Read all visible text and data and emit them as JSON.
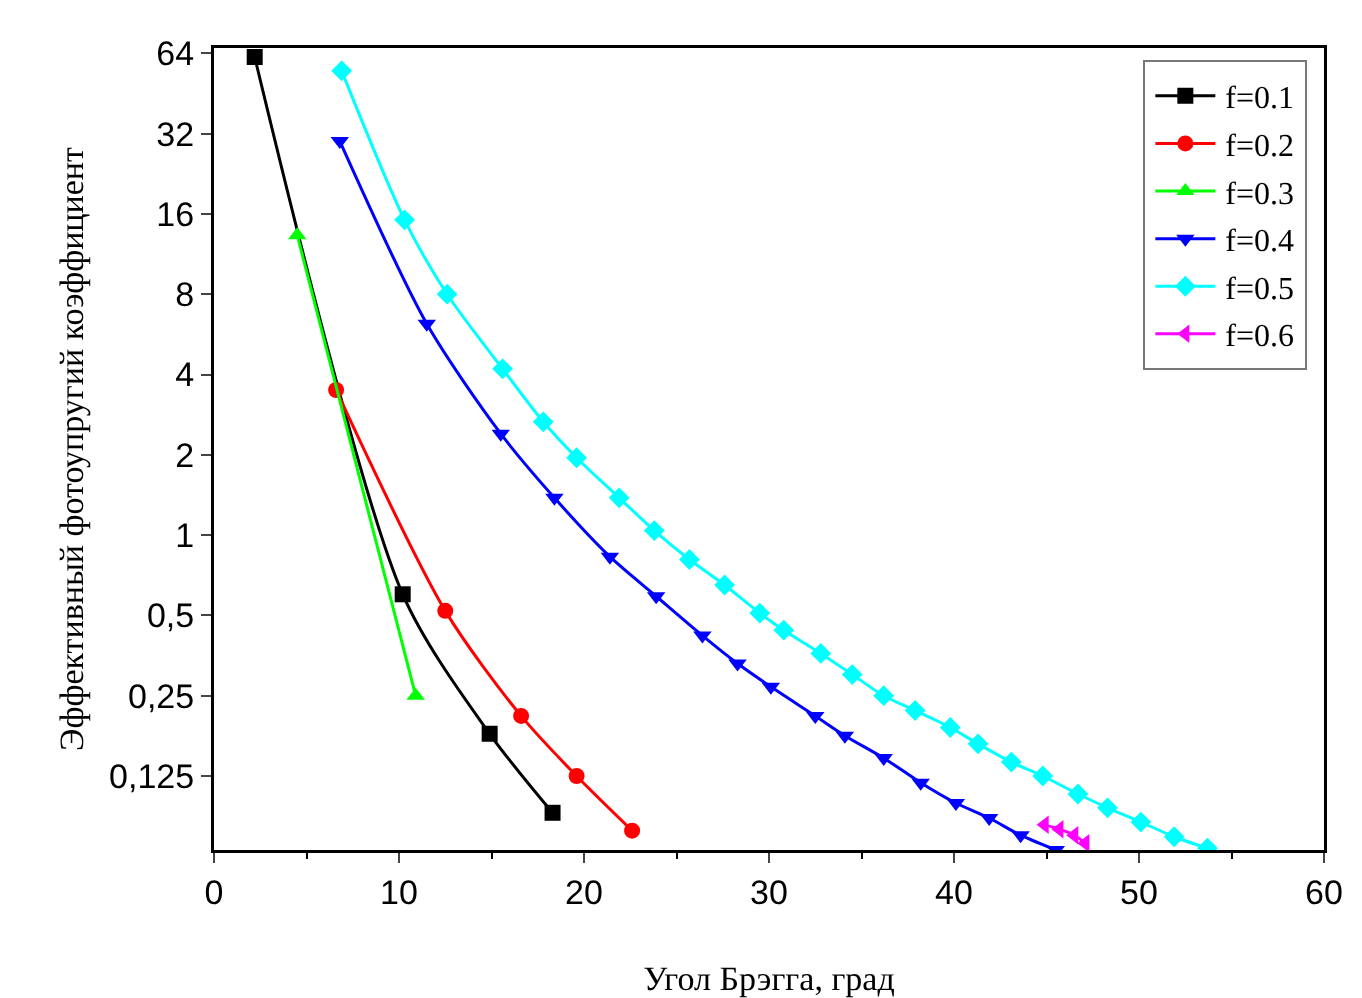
{
  "chart_data": {
    "type": "line",
    "xlabel": "Угол Брэгга, град",
    "ylabel": "Эффективный фотоупругий коэффициент",
    "log": "y",
    "xlim": [
      0,
      60
    ],
    "xticks": [
      0,
      10,
      20,
      30,
      40,
      50,
      60
    ],
    "ylim": [
      0.066,
      67
    ],
    "yticks": [
      64,
      32,
      16,
      8,
      4,
      2,
      1,
      {
        "value": 0.5,
        "label": "0,5"
      },
      {
        "value": 0.25,
        "label": "0,25"
      },
      {
        "value": 0.125,
        "label": "0,125"
      }
    ],
    "grid": false,
    "legend": "top right",
    "line_style": "solid",
    "series": [
      {
        "name": "f=0.1",
        "color": "#000000",
        "marker": "square",
        "x": [
          2.2,
          10.2,
          14.9,
          18.3
        ],
        "values": [
          62,
          0.6,
          0.18,
          0.091
        ]
      },
      {
        "name": "f=0.2",
        "color": "#ff0000",
        "marker": "circle",
        "x": [
          6.6,
          12.5,
          16.6,
          19.6,
          22.6
        ],
        "values": [
          3.5,
          0.52,
          0.21,
          0.125,
          0.078
        ]
      },
      {
        "name": "f=0.3",
        "color": "#00ff00",
        "marker": "triangle",
        "x": [
          4.5,
          10.9
        ],
        "values": [
          13.3,
          0.25
        ]
      },
      {
        "name": "f=0.4",
        "color": "#0000ff",
        "marker": "triangle-down",
        "x": [
          6.8,
          11.5,
          15.5,
          18.4,
          21.4,
          23.9,
          26.4,
          28.3,
          30.1,
          32.5,
          34.1,
          36.2,
          38.2,
          40.1,
          41.9,
          43.6,
          45.5
        ],
        "values": [
          30,
          6.2,
          2.4,
          1.38,
          0.83,
          0.59,
          0.42,
          0.33,
          0.27,
          0.21,
          0.177,
          0.146,
          0.118,
          0.099,
          0.087,
          0.075,
          0.066
        ]
      },
      {
        "name": "f=0.5",
        "color": "#00ffff",
        "marker": "diamond",
        "x": [
          6.9,
          10.3,
          12.6,
          15.6,
          17.8,
          19.6,
          21.9,
          23.8,
          25.7,
          27.6,
          29.5,
          30.8,
          32.8,
          34.5,
          36.2,
          37.9,
          39.8,
          41.3,
          43.1,
          44.8,
          46.7,
          48.3,
          50.1,
          51.9,
          53.7
        ],
        "values": [
          55,
          15.2,
          8,
          4.2,
          2.66,
          1.95,
          1.38,
          1.04,
          0.81,
          0.65,
          0.51,
          0.44,
          0.36,
          0.3,
          0.25,
          0.22,
          0.19,
          0.165,
          0.141,
          0.125,
          0.107,
          0.095,
          0.084,
          0.074,
          0.067
        ]
      },
      {
        "name": "f=0.6",
        "color": "#ff00ff",
        "marker": "triangle-left",
        "x": [
          44.9,
          45.7,
          46.5,
          47.1
        ],
        "values": [
          0.082,
          0.079,
          0.075,
          0.07
        ]
      }
    ]
  }
}
